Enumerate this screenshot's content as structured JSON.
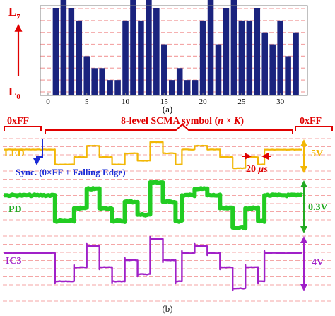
{
  "chart_data": [
    {
      "type": "bar",
      "caption": "(a)",
      "ylabels": {
        "top": "L",
        "top_sub": "7",
        "bottom": "L",
        "bottom_sub": "0"
      },
      "x": [
        1,
        2,
        3,
        4,
        5,
        6,
        7,
        8,
        9,
        10,
        11,
        12,
        13,
        14,
        15,
        16,
        17,
        18,
        19,
        20,
        21,
        22,
        23,
        24,
        25,
        26,
        27,
        28,
        29,
        30,
        31,
        32
      ],
      "values": [
        6,
        7,
        6,
        5,
        2,
        1,
        1,
        0,
        0,
        5,
        7,
        5,
        7,
        6,
        3,
        0,
        1,
        0,
        0,
        5,
        7,
        3,
        6,
        7,
        5,
        5,
        6,
        4,
        3,
        5,
        2,
        4
      ],
      "xticks": [
        0,
        5,
        10,
        15,
        20,
        25,
        30
      ],
      "xlim": [
        -1,
        33.5
      ],
      "ylim": [
        0,
        7
      ],
      "grid": true,
      "bar_color": "#1a237e",
      "grid_color": "#f4a6a6"
    },
    {
      "type": "line",
      "caption": "(b)",
      "series": [
        {
          "name": "LED",
          "amplitude_label": "5V",
          "color": "#f2b705",
          "levels": [
            5,
            5,
            5,
            5,
            5,
            5,
            5,
            5,
            1,
            1,
            1,
            3,
            3,
            6,
            6,
            3,
            3,
            1,
            1,
            4,
            4,
            2,
            2,
            7,
            7,
            4,
            4,
            1,
            5,
            5,
            6,
            6,
            5,
            5,
            3,
            3,
            0,
            0,
            3,
            3,
            1,
            5,
            5,
            5,
            5,
            5,
            5
          ]
        },
        {
          "name": "PD",
          "amplitude_label": "0.3V",
          "color": "#22cc22",
          "levels": [
            5,
            5,
            5,
            5,
            5,
            5,
            5,
            5,
            1,
            1,
            1,
            3,
            3,
            6,
            6,
            3,
            3,
            1,
            1,
            4,
            4,
            2,
            2,
            7,
            7,
            4,
            4,
            1,
            5,
            5,
            6,
            6,
            5,
            5,
            3,
            3,
            0,
            0,
            3,
            3,
            1,
            5,
            5,
            5,
            5,
            5,
            5
          ]
        },
        {
          "name": "IC3",
          "amplitude_label": "4V",
          "color": "#a020c8",
          "levels": [
            5,
            5,
            5,
            5,
            5,
            5,
            5,
            5,
            1,
            1,
            1,
            3,
            3,
            6,
            6,
            3,
            3,
            1,
            1,
            4,
            4,
            2,
            2,
            7,
            7,
            4,
            4,
            1,
            5,
            5,
            6,
            6,
            5,
            5,
            3,
            3,
            0,
            0,
            3,
            3,
            1,
            5,
            5,
            5,
            5,
            5,
            5
          ]
        }
      ],
      "annotations": {
        "left_header": "0xFF",
        "center_header_prefix": "8-level SCMA symbol (",
        "center_header_math": "n × K",
        "center_header_suffix": ")",
        "right_header": "0xFF",
        "sync_label": "Sync. (0×FF + Falling Edge)",
        "time_label_value": "20 ",
        "time_label_unit": "μs"
      },
      "header_color": "#e00000",
      "sync_color": "#1a2bd6",
      "grid": true,
      "grid_color": "#f4a6a6"
    }
  ]
}
